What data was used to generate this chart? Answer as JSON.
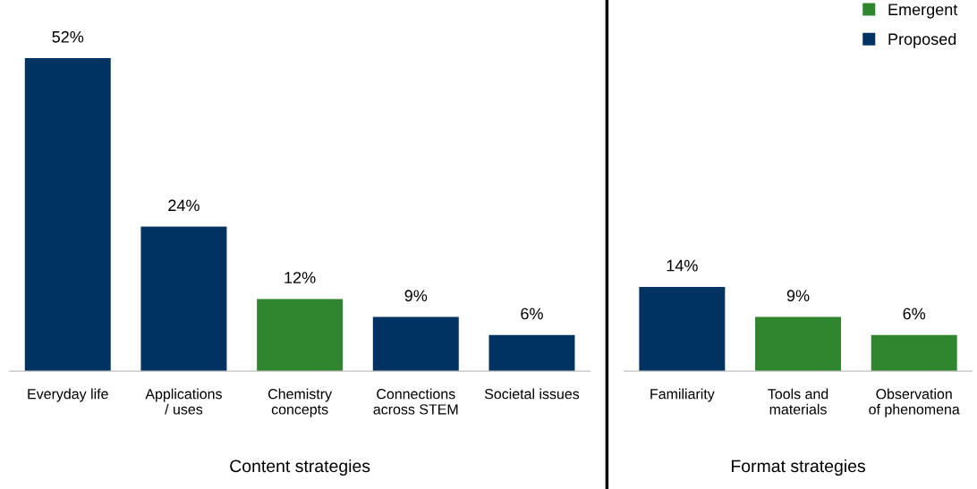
{
  "chart_data": [
    {
      "type": "bar",
      "xlabel": "Content strategies",
      "categories": [
        "Everyday life",
        "Applications / uses",
        "Chemistry concepts",
        "Connections across STEM",
        "Societal issues"
      ],
      "series": [
        {
          "color": "#2f862f",
          "values": [
            null,
            null,
            12,
            null,
            null
          ],
          "value_labels": [
            null,
            null,
            "12%",
            null,
            null
          ]
        },
        {
          "color": "#003262",
          "values": [
            52,
            24,
            null,
            9,
            6
          ],
          "value_labels": [
            "52%",
            "24%",
            null,
            "9%",
            "6%"
          ]
        }
      ],
      "tick_labels": "x"
    },
    {
      "type": "bar",
      "xlabel": "Format strategies",
      "categories": [
        "Familiarity",
        "Tools and materials",
        "Observation of phenomena"
      ],
      "series": [
        {
          "name": "Emergent",
          "color": "#2f862f",
          "values": [
            null,
            9,
            6
          ],
          "value_labels": [
            null,
            "9%",
            "6%"
          ]
        },
        {
          "name": "Proposed",
          "color": "#003262",
          "values": [
            14,
            null,
            null
          ],
          "value_labels": [
            "14%",
            null,
            null
          ]
        }
      ],
      "legend": "top right",
      "tick_labels": "x"
    }
  ]
}
